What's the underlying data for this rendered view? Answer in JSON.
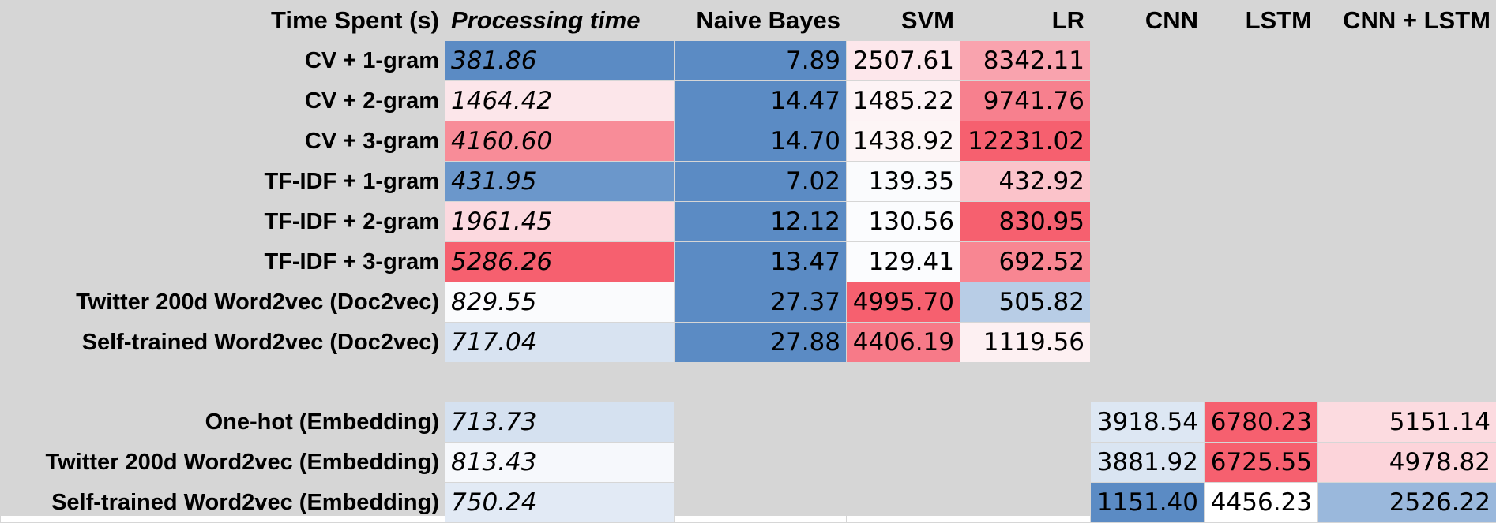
{
  "header": {
    "time_spent": "Time Spent (s)",
    "processing_time": "Processing time",
    "naive_bayes": "Naive Bayes",
    "svm": "SVM",
    "lr": "LR",
    "cnn": "CNN",
    "lstm": "LSTM",
    "cnn_lstm": "CNN + LSTM"
  },
  "rows": [
    {
      "label": "CV + 1-gram",
      "proc": "381.86",
      "nb": "7.89",
      "svm": "2507.61",
      "lr": "8342.11",
      "cnn": "",
      "lstm": "",
      "cnnlstm": "",
      "colors": {
        "proc": "#5b8bc4",
        "nb": "#5b8bc4",
        "svm": "#fde7eb",
        "lr": "#f9a3ae",
        "cnn": "",
        "lstm": "",
        "cnnlstm": ""
      }
    },
    {
      "label": "CV + 2-gram",
      "proc": "1464.42",
      "nb": "14.47",
      "svm": "1485.22",
      "lr": "9741.76",
      "cnn": "",
      "lstm": "",
      "cnnlstm": "",
      "colors": {
        "proc": "#fce6ea",
        "nb": "#5b8bc4",
        "svm": "#fdf3f5",
        "lr": "#f7808e",
        "cnn": "",
        "lstm": "",
        "cnnlstm": ""
      }
    },
    {
      "label": "CV + 3-gram",
      "proc": "4160.60",
      "nb": "14.70",
      "svm": "1438.92",
      "lr": "12231.02",
      "cnn": "",
      "lstm": "",
      "cnnlstm": "",
      "colors": {
        "proc": "#f88c98",
        "nb": "#5b8bc4",
        "svm": "#fdf5f6",
        "lr": "#f6606f",
        "cnn": "",
        "lstm": "",
        "cnnlstm": ""
      }
    },
    {
      "label": "TF-IDF + 1-gram",
      "proc": "431.95",
      "nb": "7.02",
      "svm": "139.35",
      "lr": "432.92",
      "cnn": "",
      "lstm": "",
      "cnnlstm": "",
      "colors": {
        "proc": "#6b97cb",
        "nb": "#5b8bc4",
        "svm": "#fafbfd",
        "lr": "#fbc3ca",
        "cnn": "",
        "lstm": "",
        "cnnlstm": ""
      }
    },
    {
      "label": "TF-IDF + 2-gram",
      "proc": "1961.45",
      "nb": "12.12",
      "svm": "130.56",
      "lr": "830.95",
      "cnn": "",
      "lstm": "",
      "cnnlstm": "",
      "colors": {
        "proc": "#fcd9df",
        "nb": "#5b8bc4",
        "svm": "#fbfcfe",
        "lr": "#f6606f",
        "cnn": "",
        "lstm": "",
        "cnnlstm": ""
      }
    },
    {
      "label": "TF-IDF + 3-gram",
      "proc": "5286.26",
      "nb": "13.47",
      "svm": "129.41",
      "lr": "692.52",
      "cnn": "",
      "lstm": "",
      "cnnlstm": "",
      "colors": {
        "proc": "#f6606f",
        "nb": "#5b8bc4",
        "svm": "#fbfcfe",
        "lr": "#f88692",
        "cnn": "",
        "lstm": "",
        "cnnlstm": ""
      }
    },
    {
      "label": "Twitter 200d Word2vec (Doc2vec)",
      "proc": "829.55",
      "nb": "27.37",
      "svm": "4995.70",
      "lr": "505.82",
      "cnn": "",
      "lstm": "",
      "cnnlstm": "",
      "colors": {
        "proc": "#fafbfd",
        "nb": "#5b8bc4",
        "svm": "#f6606f",
        "lr": "#b8cde6",
        "cnn": "",
        "lstm": "",
        "cnnlstm": ""
      }
    },
    {
      "label": "Self-trained Word2vec (Doc2vec)",
      "proc": "717.04",
      "nb": "27.88",
      "svm": "4406.19",
      "lr": "1119.56",
      "cnn": "",
      "lstm": "",
      "cnnlstm": "",
      "colors": {
        "proc": "#d8e3f1",
        "nb": "#5b8bc4",
        "svm": "#f77a88",
        "lr": "#fdf0f2",
        "cnn": "",
        "lstm": "",
        "cnnlstm": ""
      }
    }
  ],
  "rows_embedding": [
    {
      "label": "One-hot (Embedding)",
      "proc": "713.73",
      "nb": "",
      "svm": "",
      "lr": "",
      "cnn": "3918.54",
      "lstm": "6780.23",
      "cnnlstm": "5151.14",
      "colors": {
        "proc": "#d5e1f0",
        "nb": "",
        "svm": "",
        "lr": "",
        "cnn": "#dde7f3",
        "lstm": "#f6606f",
        "cnnlstm": "#fcdbe0"
      }
    },
    {
      "label": "Twitter 200d Word2vec (Embedding)",
      "proc": "813.43",
      "nb": "",
      "svm": "",
      "lr": "",
      "cnn": "3881.92",
      "lstm": "6725.55",
      "cnnlstm": "4978.82",
      "colors": {
        "proc": "#f6f8fc",
        "nb": "",
        "svm": "",
        "lr": "",
        "cnn": "#dae5f2",
        "lstm": "#f6606f",
        "cnnlstm": "#fcd4da"
      }
    },
    {
      "label": "Self-trained Word2vec (Embedding)",
      "proc": "750.24",
      "nb": "",
      "svm": "",
      "lr": "",
      "cnn": "1151.40",
      "lstm": "4456.23",
      "cnnlstm": "2526.22",
      "colors": {
        "proc": "#e2eaf5",
        "nb": "",
        "svm": "",
        "lr": "",
        "cnn": "#5b8bc4",
        "lstm": "#ffffff",
        "cnnlstm": "#9ab8dc"
      }
    }
  ]
}
